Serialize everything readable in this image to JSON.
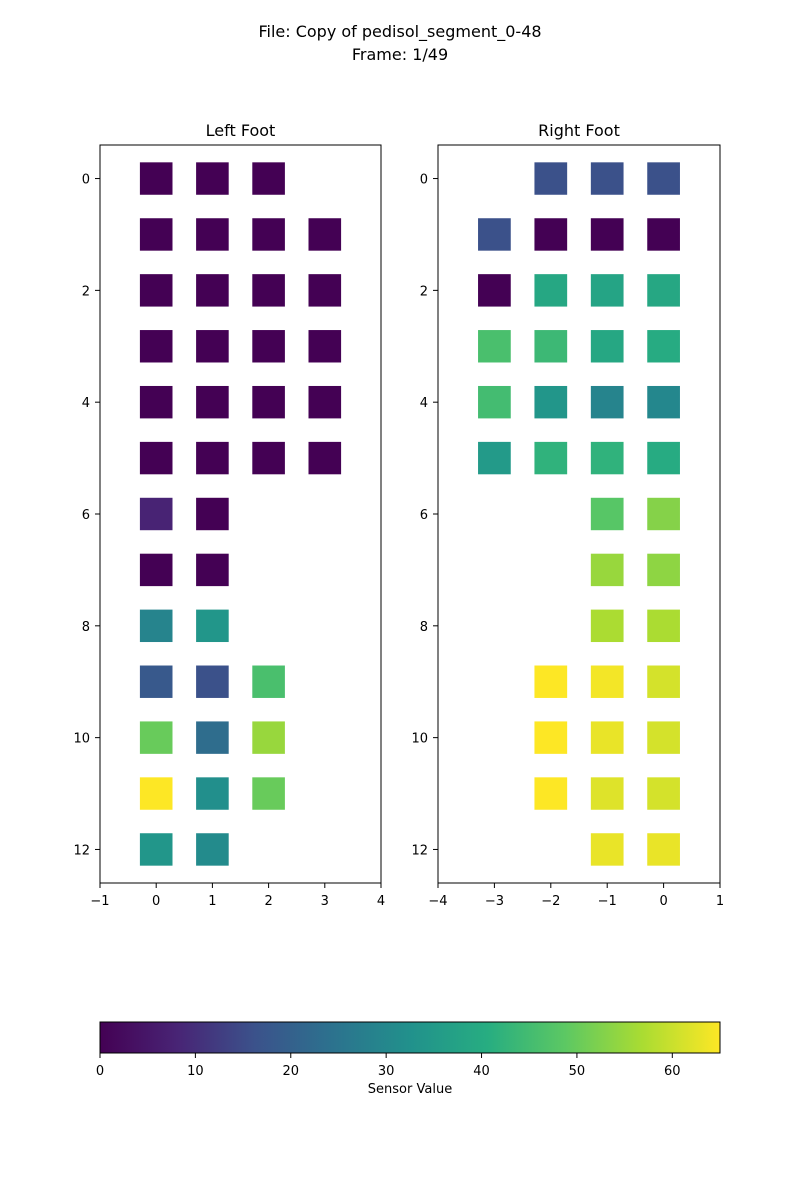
{
  "header": {
    "file_line": "File: Copy of pedisol_segment_0-48",
    "frame_line": "Frame: 1/49"
  },
  "chart_data": [
    {
      "type": "heatmap",
      "title": "Left Foot",
      "xlim": [
        -1,
        4
      ],
      "ylim": [
        12.6,
        -0.6
      ],
      "x_ticks": [
        "−1",
        "0",
        "1",
        "2",
        "3",
        "4"
      ],
      "y_ticks": [
        "0",
        "2",
        "4",
        "6",
        "8",
        "10",
        "12"
      ],
      "cells": [
        {
          "x": 0,
          "y": 0,
          "v": 0
        },
        {
          "x": 1,
          "y": 0,
          "v": 0
        },
        {
          "x": 2,
          "y": 0,
          "v": 0
        },
        {
          "x": 0,
          "y": 1,
          "v": 0
        },
        {
          "x": 1,
          "y": 1,
          "v": 0
        },
        {
          "x": 2,
          "y": 1,
          "v": 0
        },
        {
          "x": 3,
          "y": 1,
          "v": 0
        },
        {
          "x": 0,
          "y": 2,
          "v": 0
        },
        {
          "x": 1,
          "y": 2,
          "v": 0
        },
        {
          "x": 2,
          "y": 2,
          "v": 0
        },
        {
          "x": 3,
          "y": 2,
          "v": 0
        },
        {
          "x": 0,
          "y": 3,
          "v": 0
        },
        {
          "x": 1,
          "y": 3,
          "v": 0
        },
        {
          "x": 2,
          "y": 3,
          "v": 0
        },
        {
          "x": 3,
          "y": 3,
          "v": 0
        },
        {
          "x": 0,
          "y": 4,
          "v": 0
        },
        {
          "x": 1,
          "y": 4,
          "v": 0
        },
        {
          "x": 2,
          "y": 4,
          "v": 0
        },
        {
          "x": 3,
          "y": 4,
          "v": 0
        },
        {
          "x": 0,
          "y": 5,
          "v": 0
        },
        {
          "x": 1,
          "y": 5,
          "v": 0
        },
        {
          "x": 2,
          "y": 5,
          "v": 0
        },
        {
          "x": 3,
          "y": 5,
          "v": 0
        },
        {
          "x": 0,
          "y": 6,
          "v": 8
        },
        {
          "x": 1,
          "y": 6,
          "v": 0
        },
        {
          "x": 0,
          "y": 7,
          "v": 0
        },
        {
          "x": 1,
          "y": 7,
          "v": 0
        },
        {
          "x": 0,
          "y": 8,
          "v": 29
        },
        {
          "x": 1,
          "y": 8,
          "v": 34
        },
        {
          "x": 0,
          "y": 9,
          "v": 18
        },
        {
          "x": 1,
          "y": 9,
          "v": 16
        },
        {
          "x": 2,
          "y": 9,
          "v": 46
        },
        {
          "x": 0,
          "y": 10,
          "v": 50
        },
        {
          "x": 1,
          "y": 10,
          "v": 23
        },
        {
          "x": 2,
          "y": 10,
          "v": 55
        },
        {
          "x": 0,
          "y": 11,
          "v": 65
        },
        {
          "x": 1,
          "y": 11,
          "v": 32
        },
        {
          "x": 2,
          "y": 11,
          "v": 50
        },
        {
          "x": 0,
          "y": 12,
          "v": 34
        },
        {
          "x": 1,
          "y": 12,
          "v": 31
        }
      ]
    },
    {
      "type": "heatmap",
      "title": "Right Foot",
      "xlim": [
        -4,
        1
      ],
      "ylim": [
        12.6,
        -0.6
      ],
      "x_ticks": [
        "−4",
        "−3",
        "−2",
        "−1",
        "0",
        "1"
      ],
      "y_ticks": [
        "0",
        "2",
        "4",
        "6",
        "8",
        "10",
        "12"
      ],
      "cells": [
        {
          "x": -2,
          "y": 0,
          "v": 16
        },
        {
          "x": -1,
          "y": 0,
          "v": 16
        },
        {
          "x": 0,
          "y": 0,
          "v": 16
        },
        {
          "x": -3,
          "y": 1,
          "v": 16
        },
        {
          "x": -2,
          "y": 1,
          "v": 0
        },
        {
          "x": -1,
          "y": 1,
          "v": 0
        },
        {
          "x": 0,
          "y": 1,
          "v": 0
        },
        {
          "x": -3,
          "y": 2,
          "v": 0
        },
        {
          "x": -2,
          "y": 2,
          "v": 39
        },
        {
          "x": -1,
          "y": 2,
          "v": 38
        },
        {
          "x": 0,
          "y": 2,
          "v": 39
        },
        {
          "x": -3,
          "y": 3,
          "v": 46
        },
        {
          "x": -2,
          "y": 3,
          "v": 44
        },
        {
          "x": -1,
          "y": 3,
          "v": 39
        },
        {
          "x": 0,
          "y": 3,
          "v": 40
        },
        {
          "x": -3,
          "y": 4,
          "v": 45
        },
        {
          "x": -2,
          "y": 4,
          "v": 34
        },
        {
          "x": -1,
          "y": 4,
          "v": 29
        },
        {
          "x": 0,
          "y": 4,
          "v": 30
        },
        {
          "x": -3,
          "y": 5,
          "v": 35
        },
        {
          "x": -2,
          "y": 5,
          "v": 42
        },
        {
          "x": -1,
          "y": 5,
          "v": 42
        },
        {
          "x": 0,
          "y": 5,
          "v": 40
        },
        {
          "x": -1,
          "y": 6,
          "v": 48
        },
        {
          "x": 0,
          "y": 6,
          "v": 53
        },
        {
          "x": -1,
          "y": 7,
          "v": 55
        },
        {
          "x": 0,
          "y": 7,
          "v": 54
        },
        {
          "x": -1,
          "y": 8,
          "v": 57
        },
        {
          "x": 0,
          "y": 8,
          "v": 57
        },
        {
          "x": -2,
          "y": 9,
          "v": 65
        },
        {
          "x": -1,
          "y": 9,
          "v": 64
        },
        {
          "x": 0,
          "y": 9,
          "v": 61
        },
        {
          "x": -2,
          "y": 10,
          "v": 65
        },
        {
          "x": -1,
          "y": 10,
          "v": 63
        },
        {
          "x": 0,
          "y": 10,
          "v": 61
        },
        {
          "x": -2,
          "y": 11,
          "v": 65
        },
        {
          "x": -1,
          "y": 11,
          "v": 62
        },
        {
          "x": 0,
          "y": 11,
          "v": 61
        },
        {
          "x": -1,
          "y": 12,
          "v": 63
        },
        {
          "x": 0,
          "y": 12,
          "v": 63
        }
      ]
    }
  ],
  "colorbar": {
    "label": "Sensor Value",
    "range": [
      0,
      65
    ],
    "ticks": [
      "0",
      "10",
      "20",
      "30",
      "40",
      "50",
      "60"
    ],
    "colormap": "viridis"
  }
}
